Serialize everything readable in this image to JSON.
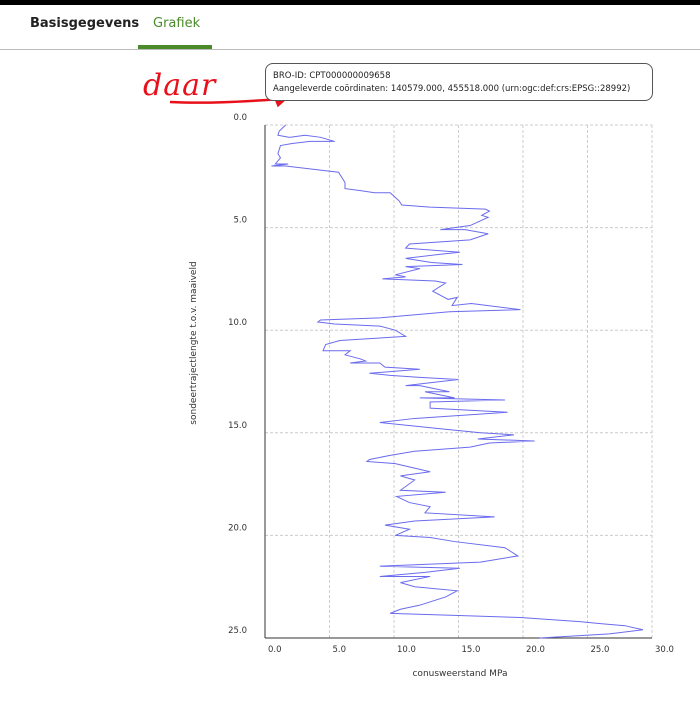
{
  "tabs": [
    {
      "label": "Basisgegevens",
      "active": false
    },
    {
      "label": "Grafiek",
      "active": true
    }
  ],
  "tooltip": {
    "bro_id": "BRO-ID: CPT000000009658",
    "coordinates": "Aangeleverde coördinaten: 140579.000, 455518.000 (urn:ogc:def:crs:EPSG::28992)"
  },
  "annotation": "daar",
  "chart_data": {
    "type": "line",
    "x_label": "conusweerstand MPa",
    "y_label": "sondeertrajectlengte t.o.v. maaiveld",
    "xlim": [
      0,
      30
    ],
    "ylim": [
      0,
      25
    ],
    "y_reversed": true,
    "grid": true,
    "xticks": [
      {
        "value": 0,
        "label": "0.0"
      },
      {
        "value": 5,
        "label": "5.0"
      },
      {
        "value": 10,
        "label": "10.0"
      },
      {
        "value": 15,
        "label": "15.0"
      },
      {
        "value": 20,
        "label": "20.0"
      },
      {
        "value": 25,
        "label": "25.0"
      },
      {
        "value": 30,
        "label": "30.0"
      }
    ],
    "yticks": [
      {
        "value": 0,
        "label": "0.0"
      },
      {
        "value": 5,
        "label": "5.0"
      },
      {
        "value": 10,
        "label": "10.0"
      },
      {
        "value": 15,
        "label": "15.0"
      },
      {
        "value": 20,
        "label": "20.0"
      },
      {
        "value": 25,
        "label": "25.0"
      }
    ],
    "series": [
      {
        "color": "#6b6bee",
        "x": [
          1.6,
          1.1,
          1.0,
          1.9,
          3.1,
          4.3,
          5.4,
          3.5,
          2.1,
          1.2,
          1.0,
          1.2,
          0.8,
          1.8,
          0.5,
          1.6,
          4.3,
          5.7,
          6.0,
          6.2,
          6.2,
          7.4,
          8.5,
          9.7,
          10.4,
          10.6,
          12.8,
          17.1,
          17.4,
          16.8,
          17.3,
          15.9,
          13.6,
          15.5,
          17.3,
          15.9,
          11.2,
          10.9,
          15.1,
          13.6,
          10.9,
          12.9,
          15.3,
          10.9,
          12.0,
          10.1,
          10.9,
          9.1,
          13.2,
          14.0,
          13.0,
          14.2,
          14.9,
          14.5,
          16.0,
          19.8,
          14.3,
          8.9,
          4.3,
          4.1,
          5.4,
          8.9,
          10.1,
          10.9,
          5.8,
          4.7,
          4.5,
          6.6,
          6.2,
          7.4,
          7.8,
          6.6,
          8.9,
          9.3,
          12.0,
          8.1,
          9.7,
          12.0,
          15.0,
          10.9,
          12.0,
          14.3,
          12.4,
          14.7,
          12.0,
          18.6,
          12.8,
          12.8,
          18.8,
          11.6,
          8.9,
          13.6,
          16.7,
          19.3,
          16.5,
          20.9,
          17.4,
          15.9,
          11.6,
          9.7,
          8.1,
          7.9,
          10.1,
          12.8,
          10.5,
          11.6,
          10.5,
          14.0,
          10.2,
          11.2,
          12.8,
          12.4,
          17.8,
          11.6,
          9.3,
          11.2,
          10.1,
          12.8,
          14.7,
          18.6,
          19.6,
          16.7,
          8.9,
          15.1,
          12.4,
          8.9,
          12.8,
          10.5,
          11.6,
          14.9,
          14.0,
          12.0,
          10.5,
          9.7,
          14.7,
          19.8,
          24.4,
          26.0,
          27.9,
          29.3,
          26.7,
          21.3
        ],
        "values": [
          0.0,
          0.3,
          0.5,
          0.6,
          0.5,
          0.6,
          0.8,
          0.8,
          0.9,
          1.0,
          1.4,
          1.6,
          1.9,
          1.9,
          2.0,
          2.0,
          2.2,
          2.3,
          2.6,
          2.8,
          3.1,
          3.2,
          3.3,
          3.3,
          3.7,
          3.9,
          4.0,
          4.1,
          4.2,
          4.4,
          4.5,
          4.9,
          5.1,
          5.1,
          5.3,
          5.6,
          5.8,
          6.0,
          6.2,
          6.3,
          6.5,
          6.7,
          6.8,
          6.9,
          7.0,
          7.3,
          7.4,
          7.5,
          7.6,
          7.7,
          8.1,
          8.5,
          8.4,
          8.8,
          8.7,
          9.0,
          9.1,
          9.4,
          9.5,
          9.6,
          9.7,
          9.8,
          10.0,
          10.3,
          10.5,
          10.7,
          11.0,
          11.0,
          11.2,
          11.4,
          11.5,
          11.6,
          11.6,
          11.8,
          11.9,
          12.1,
          12.2,
          12.3,
          12.4,
          12.7,
          12.7,
          13.0,
          13.0,
          13.3,
          13.3,
          13.4,
          13.5,
          13.8,
          14.0,
          14.3,
          14.5,
          14.8,
          15.0,
          15.1,
          15.3,
          15.4,
          15.5,
          15.7,
          15.9,
          16.1,
          16.3,
          16.4,
          16.5,
          16.9,
          17.1,
          17.3,
          17.8,
          17.9,
          18.1,
          18.4,
          18.6,
          18.9,
          19.1,
          19.3,
          19.5,
          19.7,
          20.0,
          20.1,
          20.3,
          20.6,
          21.0,
          21.3,
          21.5,
          21.6,
          21.8,
          22.0,
          22.0,
          22.3,
          22.5,
          22.7,
          23.0,
          23.4,
          23.6,
          23.8,
          23.9,
          24.0,
          24.2,
          24.3,
          24.4,
          24.6,
          24.8,
          25.0
        ]
      }
    ]
  }
}
